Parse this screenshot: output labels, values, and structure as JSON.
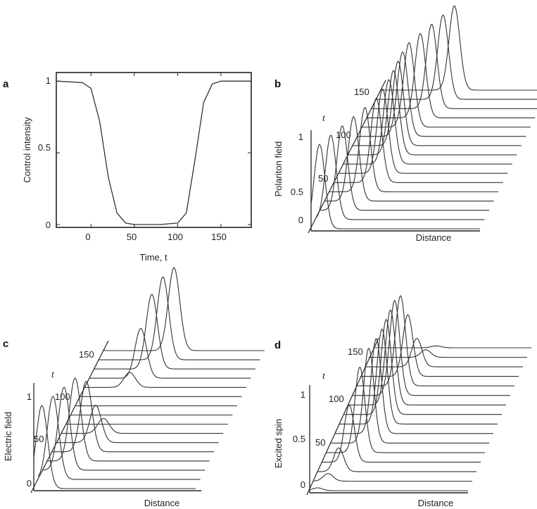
{
  "chart_data": [
    {
      "panel": "a",
      "type": "line",
      "xlabel": "Time, t",
      "ylabel": "Control intensity",
      "xlim": [
        -40,
        185
      ],
      "ylim": [
        -0.02,
        1.06
      ],
      "xticks": [
        "0",
        "50",
        "100",
        "150"
      ],
      "yticks": [
        "0",
        "0.5",
        "1"
      ],
      "series": [
        {
          "name": "control",
          "x": [
            -40,
            -10,
            0,
            10,
            20,
            30,
            40,
            50,
            60,
            80,
            100,
            110,
            120,
            130,
            140,
            150,
            185
          ],
          "y": [
            1,
            0.99,
            0.95,
            0.72,
            0.33,
            0.08,
            0.01,
            0,
            0,
            0,
            0.01,
            0.08,
            0.45,
            0.85,
            0.98,
            1,
            1
          ]
        }
      ]
    },
    {
      "panel": "b",
      "type": "waterfall",
      "xlabel": "Distance",
      "ylabel": "Polariton field",
      "tlabel": "t",
      "yticks": [
        "0",
        "0.5",
        "1"
      ],
      "tticks": [
        "50",
        "100",
        "150"
      ],
      "n_traces": 16,
      "amplitudes": [
        1,
        1,
        1,
        1,
        1,
        1,
        1,
        1,
        1,
        1,
        1,
        1,
        1,
        1,
        1,
        1
      ],
      "positions": [
        0.05,
        0.09,
        0.13,
        0.17,
        0.21,
        0.25,
        0.26,
        0.27,
        0.27,
        0.27,
        0.27,
        0.28,
        0.32,
        0.36,
        0.4,
        0.44
      ]
    },
    {
      "panel": "c",
      "type": "waterfall",
      "xlabel": "Distance",
      "ylabel": "Electric field",
      "tlabel": "t",
      "yticks": [
        "0",
        "1"
      ],
      "tticks": [
        "50",
        "100",
        "150"
      ],
      "n_traces": 16,
      "amplitudes": [
        1,
        1,
        1,
        1,
        0.85,
        0.45,
        0.18,
        0,
        0,
        0,
        0,
        0.18,
        0.6,
        0.9,
        1,
        1
      ],
      "positions": [
        0.05,
        0.09,
        0.13,
        0.17,
        0.21,
        0.24,
        0.26,
        0.27,
        0.27,
        0.27,
        0.27,
        0.28,
        0.32,
        0.36,
        0.4,
        0.44
      ]
    },
    {
      "panel": "d",
      "type": "waterfall",
      "xlabel": "Distance",
      "ylabel": "Excited spin",
      "tlabel": "t",
      "yticks": [
        "0",
        "0.5",
        "1"
      ],
      "tticks": [
        "50",
        "100",
        "150"
      ],
      "n_traces": 16,
      "amplitudes": [
        0.03,
        0.08,
        0.25,
        0.6,
        0.9,
        1,
        1,
        1,
        1,
        1,
        1,
        0.95,
        0.65,
        0.3,
        0.08,
        0.02
      ],
      "positions": [
        0.05,
        0.09,
        0.13,
        0.17,
        0.21,
        0.24,
        0.26,
        0.27,
        0.27,
        0.27,
        0.27,
        0.28,
        0.3,
        0.33,
        0.36,
        0.4
      ]
    }
  ]
}
